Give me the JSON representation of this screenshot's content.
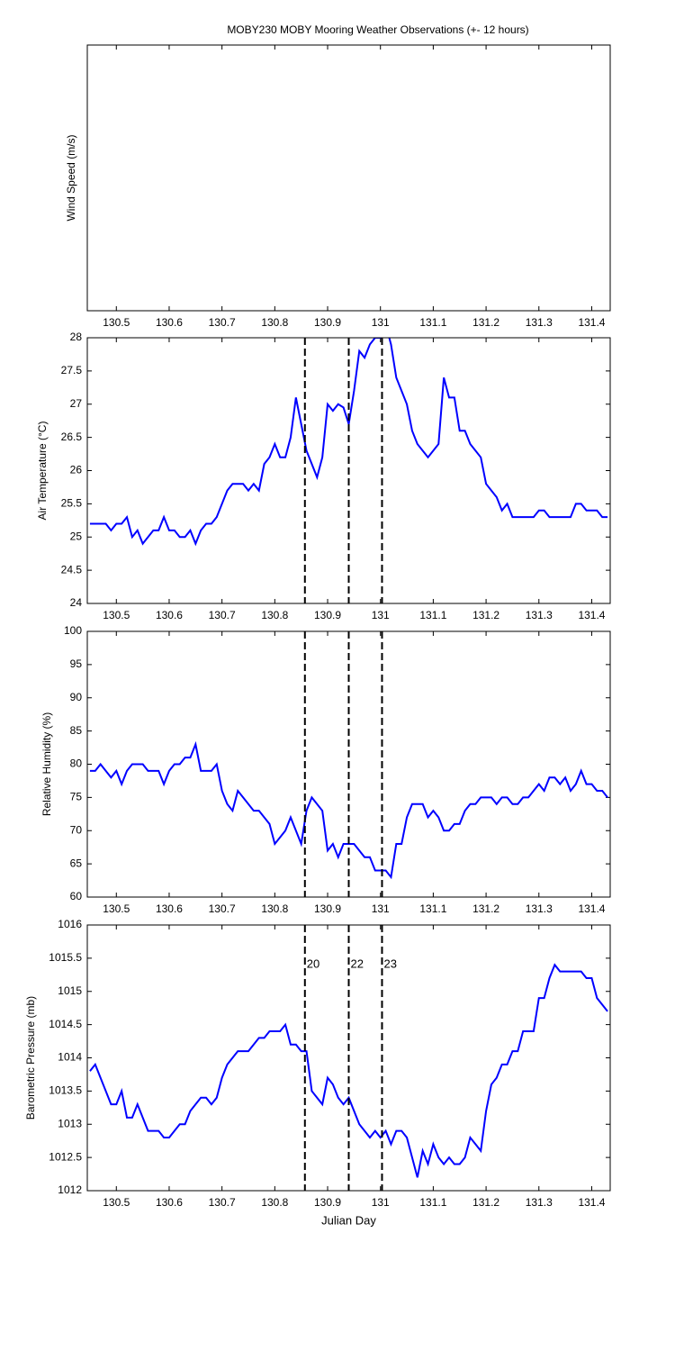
{
  "chart_data": [
    {
      "type": "line",
      "title": "MOBY230 MOBY Mooring Weather Observations (+- 12 hours)",
      "ylabel": "Wind Speed (m/s)",
      "xlim": [
        130.445,
        131.435
      ],
      "xticks": [
        130.5,
        130.6,
        130.7,
        130.8,
        130.9,
        131,
        131.1,
        131.2,
        131.3,
        131.4
      ]
    },
    {
      "type": "line",
      "ylabel": "Air Temperature (°C)",
      "color": "#0000ff",
      "xlim": [
        130.445,
        131.435
      ],
      "xticks": [
        130.5,
        130.6,
        130.7,
        130.8,
        130.9,
        131,
        131.1,
        131.2,
        131.3,
        131.4
      ],
      "ylim": [
        24,
        28
      ],
      "yticks": [
        24,
        24.5,
        25,
        25.5,
        26,
        26.5,
        27,
        27.5,
        28
      ],
      "vlines": [
        130.857,
        130.94,
        131.003
      ],
      "x": [
        130.45,
        130.46,
        130.47,
        130.48,
        130.49,
        130.5,
        130.51,
        130.52,
        130.53,
        130.54,
        130.55,
        130.56,
        130.57,
        130.58,
        130.59,
        130.6,
        130.61,
        130.62,
        130.63,
        130.64,
        130.65,
        130.66,
        130.67,
        130.68,
        130.69,
        130.7,
        130.71,
        130.72,
        130.73,
        130.74,
        130.75,
        130.76,
        130.77,
        130.78,
        130.79,
        130.8,
        130.81,
        130.82,
        130.83,
        130.84,
        130.85,
        130.86,
        130.87,
        130.88,
        130.89,
        130.9,
        130.91,
        130.92,
        130.93,
        130.94,
        130.95,
        130.96,
        130.97,
        130.98,
        130.99,
        131,
        131.01,
        131.02,
        131.03,
        131.04,
        131.05,
        131.06,
        131.07,
        131.08,
        131.09,
        131.1,
        131.11,
        131.12,
        131.13,
        131.14,
        131.15,
        131.16,
        131.17,
        131.18,
        131.19,
        131.2,
        131.21,
        131.22,
        131.23,
        131.24,
        131.25,
        131.26,
        131.27,
        131.28,
        131.29,
        131.3,
        131.31,
        131.32,
        131.33,
        131.34,
        131.35,
        131.36,
        131.37,
        131.38,
        131.39,
        131.4,
        131.41,
        131.42,
        131.43
      ],
      "values": [
        25.2,
        25.2,
        25.2,
        25.2,
        25.1,
        25.2,
        25.2,
        25.3,
        25.0,
        25.1,
        24.9,
        25.0,
        25.1,
        25.1,
        25.3,
        25.1,
        25.1,
        25.0,
        25.0,
        25.1,
        24.9,
        25.1,
        25.2,
        25.2,
        25.3,
        25.5,
        25.7,
        25.8,
        25.8,
        25.8,
        25.7,
        25.8,
        25.7,
        26.1,
        26.2,
        26.4,
        26.2,
        26.2,
        26.5,
        27.1,
        26.7,
        26.3,
        26.1,
        25.9,
        26.2,
        27.0,
        26.9,
        27.0,
        26.95,
        26.7,
        27.2,
        27.8,
        27.7,
        27.9,
        28.0,
        28.0,
        28.2,
        27.9,
        27.4,
        27.2,
        27.0,
        26.6,
        26.4,
        26.3,
        26.2,
        26.3,
        26.4,
        27.4,
        27.1,
        27.1,
        26.6,
        26.6,
        26.4,
        26.3,
        26.2,
        25.8,
        25.7,
        25.6,
        25.4,
        25.5,
        25.3,
        25.3,
        25.3,
        25.3,
        25.3,
        25.4,
        25.4,
        25.3,
        25.3,
        25.3,
        25.3,
        25.3,
        25.5,
        25.5,
        25.4,
        25.4,
        25.4,
        25.3,
        25.3
      ]
    },
    {
      "type": "line",
      "ylabel": "Relative Humidity (%)",
      "color": "#0000ff",
      "xlim": [
        130.445,
        131.435
      ],
      "xticks": [
        130.5,
        130.6,
        130.7,
        130.8,
        130.9,
        131,
        131.1,
        131.2,
        131.3,
        131.4
      ],
      "ylim": [
        60,
        100
      ],
      "yticks": [
        60,
        65,
        70,
        75,
        80,
        85,
        90,
        95,
        100
      ],
      "vlines": [
        130.857,
        130.94,
        131.003
      ],
      "x": [
        130.45,
        130.46,
        130.47,
        130.48,
        130.49,
        130.5,
        130.51,
        130.52,
        130.53,
        130.54,
        130.55,
        130.56,
        130.57,
        130.58,
        130.59,
        130.6,
        130.61,
        130.62,
        130.63,
        130.64,
        130.65,
        130.66,
        130.67,
        130.68,
        130.69,
        130.7,
        130.71,
        130.72,
        130.73,
        130.74,
        130.75,
        130.76,
        130.77,
        130.78,
        130.79,
        130.8,
        130.81,
        130.82,
        130.83,
        130.84,
        130.85,
        130.86,
        130.87,
        130.88,
        130.89,
        130.9,
        130.91,
        130.92,
        130.93,
        130.94,
        130.95,
        130.96,
        130.97,
        130.98,
        130.99,
        131,
        131.01,
        131.02,
        131.03,
        131.04,
        131.05,
        131.06,
        131.07,
        131.08,
        131.09,
        131.1,
        131.11,
        131.12,
        131.13,
        131.14,
        131.15,
        131.16,
        131.17,
        131.18,
        131.19,
        131.2,
        131.21,
        131.22,
        131.23,
        131.24,
        131.25,
        131.26,
        131.27,
        131.28,
        131.29,
        131.3,
        131.31,
        131.32,
        131.33,
        131.34,
        131.35,
        131.36,
        131.37,
        131.38,
        131.39,
        131.4,
        131.41,
        131.42,
        131.43
      ],
      "values": [
        79,
        79,
        80,
        79,
        78,
        79,
        77,
        79,
        80,
        80,
        80,
        79,
        79,
        79,
        77,
        79,
        80,
        80,
        81,
        81,
        83,
        79,
        79,
        79,
        80,
        76,
        74,
        73,
        76,
        75,
        74,
        73,
        73,
        72,
        71,
        68,
        69,
        70,
        72,
        70,
        68,
        73,
        75,
        74,
        73,
        67,
        68,
        66,
        68,
        68,
        68,
        67,
        66,
        66,
        64,
        64,
        64,
        63,
        68,
        68,
        72,
        74,
        74,
        74,
        72,
        73,
        72,
        70,
        70,
        71,
        71,
        73,
        74,
        74,
        75,
        75,
        75,
        74,
        75,
        75,
        74,
        74,
        75,
        75,
        76,
        77,
        76,
        78,
        78,
        77,
        78,
        76,
        77,
        79,
        77,
        77,
        76,
        76,
        75
      ]
    },
    {
      "type": "line",
      "ylabel": "Barometric Pressure (mb)",
      "xlabel": "Julian Day",
      "color": "#0000ff",
      "xlim": [
        130.445,
        131.435
      ],
      "xticks": [
        130.5,
        130.6,
        130.7,
        130.8,
        130.9,
        131,
        131.1,
        131.2,
        131.3,
        131.4
      ],
      "ylim": [
        1012,
        1016
      ],
      "yticks": [
        1012,
        1012.5,
        1013,
        1013.5,
        1014,
        1014.5,
        1015,
        1015.5,
        1016
      ],
      "vlines": [
        130.857,
        130.94,
        131.003
      ],
      "annotations": [
        {
          "text": "20",
          "x": 130.857,
          "y": 1015.4,
          "color": "#cc0000"
        },
        {
          "text": "22",
          "x": 130.94,
          "y": 1015.4,
          "color": "#cc0000"
        },
        {
          "text": "23",
          "x": 131.003,
          "y": 1015.4,
          "color": "#cc0000"
        }
      ],
      "x": [
        130.45,
        130.46,
        130.47,
        130.48,
        130.49,
        130.5,
        130.51,
        130.52,
        130.53,
        130.54,
        130.55,
        130.56,
        130.57,
        130.58,
        130.59,
        130.6,
        130.61,
        130.62,
        130.63,
        130.64,
        130.65,
        130.66,
        130.67,
        130.68,
        130.69,
        130.7,
        130.71,
        130.72,
        130.73,
        130.74,
        130.75,
        130.76,
        130.77,
        130.78,
        130.79,
        130.8,
        130.81,
        130.82,
        130.83,
        130.84,
        130.85,
        130.86,
        130.87,
        130.88,
        130.89,
        130.9,
        130.91,
        130.92,
        130.93,
        130.94,
        130.95,
        130.96,
        130.97,
        130.98,
        130.99,
        131,
        131.01,
        131.02,
        131.03,
        131.04,
        131.05,
        131.06,
        131.07,
        131.08,
        131.09,
        131.1,
        131.11,
        131.12,
        131.13,
        131.14,
        131.15,
        131.16,
        131.17,
        131.18,
        131.19,
        131.2,
        131.21,
        131.22,
        131.23,
        131.24,
        131.25,
        131.26,
        131.27,
        131.28,
        131.29,
        131.3,
        131.31,
        131.32,
        131.33,
        131.34,
        131.35,
        131.36,
        131.37,
        131.38,
        131.39,
        131.4,
        131.41,
        131.42,
        131.43
      ],
      "values": [
        1013.8,
        1013.9,
        1013.7,
        1013.5,
        1013.3,
        1013.3,
        1013.5,
        1013.1,
        1013.1,
        1013.3,
        1013.1,
        1012.9,
        1012.9,
        1012.9,
        1012.8,
        1012.8,
        1012.9,
        1013.0,
        1013.0,
        1013.2,
        1013.3,
        1013.4,
        1013.4,
        1013.3,
        1013.4,
        1013.7,
        1013.9,
        1014.0,
        1014.1,
        1014.1,
        1014.1,
        1014.2,
        1014.3,
        1014.3,
        1014.4,
        1014.4,
        1014.4,
        1014.5,
        1014.2,
        1014.2,
        1014.1,
        1014.1,
        1013.5,
        1013.4,
        1013.3,
        1013.7,
        1013.6,
        1013.4,
        1013.3,
        1013.4,
        1013.2,
        1013.0,
        1012.9,
        1012.8,
        1012.9,
        1012.8,
        1012.9,
        1012.7,
        1012.9,
        1012.9,
        1012.8,
        1012.5,
        1012.2,
        1012.6,
        1012.4,
        1012.7,
        1012.5,
        1012.4,
        1012.5,
        1012.4,
        1012.4,
        1012.5,
        1012.8,
        1012.7,
        1012.6,
        1013.2,
        1013.6,
        1013.7,
        1013.9,
        1013.9,
        1014.1,
        1014.1,
        1014.4,
        1014.4,
        1014.4,
        1014.9,
        1014.9,
        1015.2,
        1015.4,
        1015.3,
        1015.3,
        1015.3,
        1015.3,
        1015.3,
        1015.2,
        1015.2,
        1014.9,
        1014.8,
        1014.7
      ]
    }
  ]
}
